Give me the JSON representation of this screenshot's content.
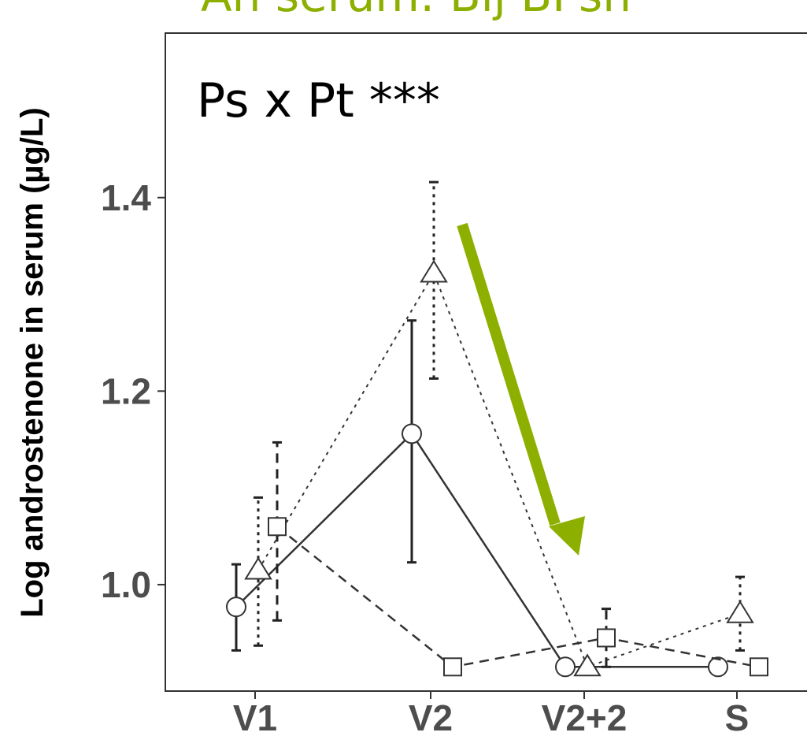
{
  "chart_data": {
    "type": "line",
    "title": "",
    "top_text": "An serum: Bij BPsh",
    "xlabel": "",
    "ylabel": "Log androstenone in serum (µg/L)",
    "categories": [
      "V1",
      "V2",
      "V2+2",
      "S"
    ],
    "ylim": [
      0.89,
      1.57
    ],
    "yticks": [
      {
        "value": 1.0,
        "label": "1.0"
      },
      {
        "value": 1.2,
        "label": "1.2"
      },
      {
        "value": 1.4,
        "label": "1.4"
      }
    ],
    "grid": false,
    "annotation": "Ps x Pt ***",
    "arrow_color": "#8db000",
    "series": [
      {
        "marker": "circle",
        "linestyle": "solid",
        "values": [
          0.977,
          1.156,
          0.915,
          0.915
        ],
        "error_low": [
          0.932,
          1.023,
          null,
          null
        ],
        "error_high": [
          1.021,
          1.273,
          null,
          null
        ]
      },
      {
        "marker": "triangle",
        "linestyle": "dotted",
        "values": [
          1.015,
          1.322,
          0.915,
          0.97
        ],
        "error_low": [
          0.937,
          1.213,
          null,
          0.932
        ],
        "error_high": [
          1.09,
          1.416,
          null,
          1.008
        ]
      },
      {
        "marker": "square",
        "linestyle": "dashed",
        "values": [
          1.06,
          0.915,
          0.945,
          0.915
        ],
        "error_low": [
          0.963,
          null,
          0.915,
          null
        ],
        "error_high": [
          1.147,
          null,
          0.975,
          null
        ]
      }
    ]
  }
}
